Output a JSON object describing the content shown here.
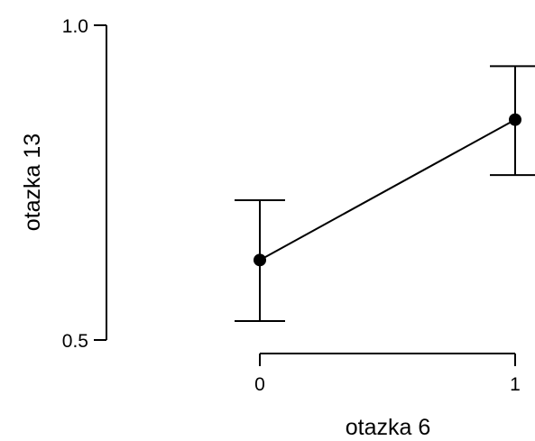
{
  "chart_data": {
    "type": "line",
    "title": "",
    "xlabel": "otazka 6",
    "ylabel": "otazka 13",
    "x": [
      0,
      1
    ],
    "x_tick_labels": [
      "0",
      "1"
    ],
    "y_tick_labels": [
      "0.5",
      "1.0"
    ],
    "ylim": [
      0.5,
      1.0
    ],
    "xlim": [
      0,
      1
    ],
    "grid": false,
    "legend": "none",
    "series": [
      {
        "values": [
          0.627,
          0.85
        ],
        "error_lower": [
          0.53,
          0.762
        ],
        "error_upper": [
          0.722,
          0.935
        ]
      }
    ],
    "colors": {
      "line": "#000000",
      "marker": "#000000"
    }
  }
}
